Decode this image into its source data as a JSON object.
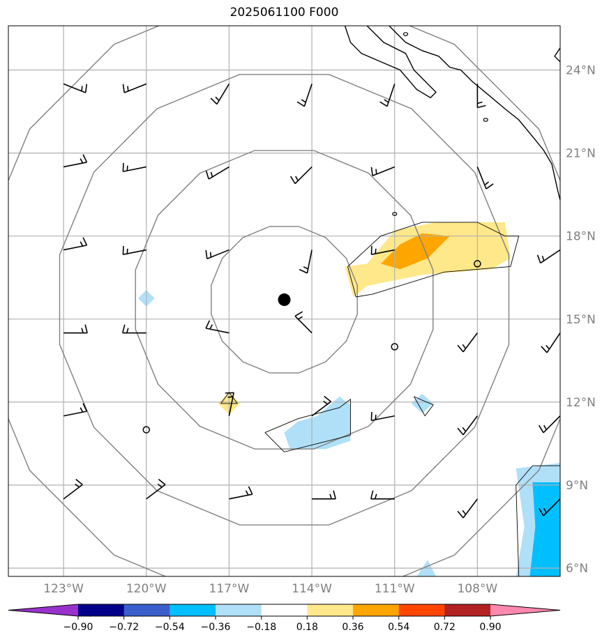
{
  "chart_data": {
    "type": "contour-map",
    "title": "2025061100 F000",
    "projection": "PlateCarree",
    "xlim": [
      -125,
      -105
    ],
    "ylim": [
      5.7,
      25.6
    ],
    "lon_ticks": [
      {
        "value": -123,
        "label": "123°W"
      },
      {
        "value": -120,
        "label": "120°W"
      },
      {
        "value": -117,
        "label": "117°W"
      },
      {
        "value": -114,
        "label": "114°W"
      },
      {
        "value": -111,
        "label": "111°W"
      },
      {
        "value": -108,
        "label": "108°W"
      }
    ],
    "lat_ticks": [
      {
        "value": 6,
        "label": "6°N"
      },
      {
        "value": 9,
        "label": "9°N"
      },
      {
        "value": 12,
        "label": "12°N"
      },
      {
        "value": 15,
        "label": "15°N"
      },
      {
        "value": 18,
        "label": "18°N"
      },
      {
        "value": 21,
        "label": "21°N"
      },
      {
        "value": 24,
        "label": "24°N"
      }
    ],
    "grid": true,
    "storm_center": {
      "lon": -115.0,
      "lat": 15.7
    },
    "range_rings_deg": [
      2.7,
      5.5,
      8.3,
      11.1
    ],
    "colorbar": {
      "levels": [
        "−0.90",
        "−0.72",
        "−0.54",
        "−0.36",
        "−0.18",
        "0.18",
        "0.36",
        "0.54",
        "0.72",
        "0.90"
      ],
      "colors": [
        "#9932cc",
        "#00008b",
        "#3a5fcd",
        "#00bfff",
        "#b0e0f8",
        "#ffffff",
        "#ffe88a",
        "#ffa500",
        "#ff4500",
        "#b22222",
        "#ff88b0"
      ],
      "extend": "both"
    },
    "filled_regions": [
      {
        "level": "0.18–0.36",
        "color": "#ffe88a",
        "points": [
          [
            -112.0,
            17.0
          ],
          [
            -111.0,
            18.2
          ],
          [
            -109.5,
            18.5
          ],
          [
            -107.0,
            18.5
          ],
          [
            -106.8,
            17.2
          ],
          [
            -107.5,
            16.8
          ],
          [
            -110.0,
            16.6
          ],
          [
            -112.0,
            16.2
          ],
          [
            -112.5,
            15.8
          ],
          [
            -112.8,
            16.9
          ]
        ]
      },
      {
        "level": "0.36–0.54",
        "color": "#ffa500",
        "points": [
          [
            -111.5,
            17.0
          ],
          [
            -110.8,
            17.7
          ],
          [
            -110.0,
            18.1
          ],
          [
            -109.0,
            18.0
          ],
          [
            -109.8,
            17.2
          ],
          [
            -110.8,
            16.8
          ]
        ]
      },
      {
        "level": "0.18–0.36",
        "color": "#ffe88a",
        "points": [
          [
            -117.0,
            12.35
          ],
          [
            -116.6,
            11.95
          ],
          [
            -117.0,
            11.55
          ],
          [
            -117.4,
            11.95
          ]
        ]
      },
      {
        "level": "-0.36–-0.18",
        "color": "#b0e0f8",
        "points": [
          [
            -120.0,
            16.05
          ],
          [
            -119.7,
            15.75
          ],
          [
            -120.0,
            15.45
          ],
          [
            -120.3,
            15.75
          ]
        ]
      },
      {
        "level": "-0.36–-0.18",
        "color": "#b0e0f8",
        "points": [
          [
            -115.0,
            10.9
          ],
          [
            -114.5,
            11.3
          ],
          [
            -113.8,
            11.5
          ],
          [
            -113.0,
            12.2
          ],
          [
            -112.6,
            11.9
          ],
          [
            -112.6,
            10.6
          ],
          [
            -113.5,
            10.3
          ],
          [
            -114.8,
            10.3
          ]
        ]
      },
      {
        "level": "-0.36–-0.18",
        "color": "#b0e0f8",
        "points": [
          [
            -110.0,
            12.3
          ],
          [
            -109.6,
            11.95
          ],
          [
            -110.0,
            11.6
          ],
          [
            -110.4,
            11.95
          ]
        ]
      },
      {
        "level": "-0.36–-0.18",
        "color": "#b0e0f8",
        "points": [
          [
            -106.6,
            9.6
          ],
          [
            -105.0,
            9.8
          ],
          [
            -105.0,
            5.7
          ],
          [
            -106.6,
            5.7
          ],
          [
            -106.3,
            7.5
          ]
        ]
      },
      {
        "level": "-0.54–-0.36",
        "color": "#00bfff",
        "points": [
          [
            -106.0,
            9.1
          ],
          [
            -105.0,
            9.1
          ],
          [
            -105.0,
            5.7
          ],
          [
            -106.1,
            5.7
          ],
          [
            -105.9,
            7.5
          ]
        ]
      },
      {
        "level": "-0.36–-0.18",
        "color": "#b0e0f8",
        "points": [
          [
            -109.8,
            6.3
          ],
          [
            -109.5,
            5.7
          ],
          [
            -110.2,
            5.7
          ]
        ]
      }
    ],
    "contour_lines": [
      [
        [
          -112.4,
          15.8
        ],
        [
          -112.7,
          16.9
        ],
        [
          -111.5,
          18.0
        ],
        [
          -110.0,
          18.5
        ],
        [
          -108.0,
          18.5
        ],
        [
          -107.0,
          18.0
        ],
        [
          -106.5,
          18.0
        ],
        [
          -106.8,
          16.9
        ],
        [
          -109.2,
          16.7
        ],
        [
          -111.8,
          15.9
        ],
        [
          -112.4,
          15.8
        ]
      ],
      [
        [
          -115.7,
          10.9
        ],
        [
          -114.5,
          11.4
        ],
        [
          -113.0,
          11.8
        ],
        [
          -112.6,
          12.1
        ],
        [
          -112.6,
          10.8
        ],
        [
          -115.0,
          10.2
        ],
        [
          -115.7,
          10.9
        ]
      ],
      [
        [
          -110.3,
          12.2
        ],
        [
          -109.6,
          11.9
        ],
        [
          -109.9,
          11.5
        ],
        [
          -110.3,
          12.2
        ]
      ],
      [
        [
          -117.3,
          11.95
        ],
        [
          -117.0,
          12.35
        ],
        [
          -116.7,
          11.95
        ],
        [
          -117.3,
          11.95
        ]
      ],
      [
        [
          -106.0,
          9.7
        ],
        [
          -105.0,
          9.7
        ]
      ],
      [
        [
          -106.0,
          9.7
        ],
        [
          -106.6,
          9.0
        ],
        [
          -106.5,
          5.7
        ]
      ]
    ],
    "station_circles": [
      [
        -108.0,
        17.0
      ],
      [
        -111.0,
        14.0
      ],
      [
        -120.0,
        11.0
      ]
    ],
    "wind_barbs": [
      {
        "lon": -123,
        "lat": 23.5,
        "u": -5,
        "v": 2
      },
      {
        "lon": -120,
        "lat": 23.5,
        "u": 5,
        "v": 2
      },
      {
        "lon": -117,
        "lat": 23.5,
        "u": 3,
        "v": 5
      },
      {
        "lon": -114,
        "lat": 23.5,
        "u": 2,
        "v": 6
      },
      {
        "lon": -111,
        "lat": 23.5,
        "u": 2,
        "v": 6
      },
      {
        "lon": -108,
        "lat": 23.5,
        "u": 0,
        "v": 6
      },
      {
        "lon": -105,
        "lat": 23.5,
        "u": -2,
        "v": 4
      },
      {
        "lon": -123,
        "lat": 20.5,
        "u": -5,
        "v": -1
      },
      {
        "lon": -120,
        "lat": 20.5,
        "u": 5,
        "v": 1
      },
      {
        "lon": -117,
        "lat": 20.5,
        "u": 5,
        "v": 3
      },
      {
        "lon": -114,
        "lat": 20.5,
        "u": 4,
        "v": 4
      },
      {
        "lon": -111,
        "lat": 20.5,
        "u": 5,
        "v": 2
      },
      {
        "lon": -108,
        "lat": 20.5,
        "u": -2,
        "v": 5
      },
      {
        "lon": -123,
        "lat": 17.5,
        "u": -5,
        "v": -1
      },
      {
        "lon": -120,
        "lat": 17.5,
        "u": 5,
        "v": 1
      },
      {
        "lon": -117,
        "lat": 17.5,
        "u": 5,
        "v": 2
      },
      {
        "lon": -114,
        "lat": 17.5,
        "u": 1,
        "v": 5
      },
      {
        "lon": -111,
        "lat": 17.5,
        "u": 5,
        "v": 1
      },
      {
        "lon": -105,
        "lat": 17.5,
        "u": 3,
        "v": 2
      },
      {
        "lon": -123,
        "lat": 14.5,
        "u": -5,
        "v": 0
      },
      {
        "lon": -120,
        "lat": 14.5,
        "u": 5,
        "v": 0
      },
      {
        "lon": -117,
        "lat": 14.5,
        "u": 5,
        "v": -1
      },
      {
        "lon": -114,
        "lat": 14.5,
        "u": 3,
        "v": -3
      },
      {
        "lon": -108,
        "lat": 14.5,
        "u": 3,
        "v": 4
      },
      {
        "lon": -105,
        "lat": 14.5,
        "u": 2,
        "v": 3
      },
      {
        "lon": -123,
        "lat": 11.5,
        "u": -5,
        "v": -1
      },
      {
        "lon": -117,
        "lat": 11.5,
        "u": -1,
        "v": -5
      },
      {
        "lon": -114,
        "lat": 11.5,
        "u": -4,
        "v": -3
      },
      {
        "lon": -111,
        "lat": 11.5,
        "u": 5,
        "v": 1
      },
      {
        "lon": -108,
        "lat": 11.5,
        "u": 3,
        "v": 4
      },
      {
        "lon": -105,
        "lat": 11.5,
        "u": 3,
        "v": 3
      },
      {
        "lon": -123,
        "lat": 8.5,
        "u": -4,
        "v": -3
      },
      {
        "lon": -120,
        "lat": 8.5,
        "u": -4,
        "v": -3
      },
      {
        "lon": -117,
        "lat": 8.5,
        "u": -5,
        "v": -1
      },
      {
        "lon": -114,
        "lat": 8.5,
        "u": -5,
        "v": 0
      },
      {
        "lon": -111,
        "lat": 8.5,
        "u": 5,
        "v": 0
      },
      {
        "lon": -108,
        "lat": 8.5,
        "u": 3,
        "v": 4
      },
      {
        "lon": -105,
        "lat": 8.5,
        "u": 3,
        "v": 3
      }
    ],
    "coastlines": [
      [
        [
          -112.8,
          25.6
        ],
        [
          -112.6,
          25.0
        ],
        [
          -112.2,
          24.6
        ],
        [
          -111.5,
          24.3
        ],
        [
          -110.8,
          24.0
        ],
        [
          -110.2,
          23.3
        ],
        [
          -109.7,
          23.0
        ],
        [
          -109.5,
          23.2
        ],
        [
          -109.9,
          23.6
        ],
        [
          -110.3,
          24.0
        ],
        [
          -110.6,
          24.6
        ],
        [
          -111.4,
          25.0
        ],
        [
          -112.0,
          25.6
        ]
      ],
      [
        [
          -111.2,
          25.6
        ],
        [
          -110.6,
          25.0
        ],
        [
          -110.0,
          24.7
        ],
        [
          -109.4,
          24.5
        ],
        [
          -109.0,
          24.1
        ],
        [
          -108.6,
          24.0
        ],
        [
          -108.2,
          23.6
        ],
        [
          -107.6,
          23.1
        ],
        [
          -107.0,
          22.6
        ],
        [
          -106.5,
          22.2
        ],
        [
          -106.0,
          21.6
        ],
        [
          -105.6,
          21.1
        ],
        [
          -105.3,
          20.6
        ],
        [
          -105.1,
          19.7
        ],
        [
          -105.0,
          19.3
        ]
      ],
      [
        [
          -105.0,
          24.8
        ],
        [
          -105.2,
          24.5
        ],
        [
          -105.0,
          24.3
        ]
      ]
    ],
    "islands": [
      [
        -111.0,
        18.8
      ],
      [
        -107.7,
        22.2
      ],
      [
        -110.6,
        25.3
      ]
    ]
  }
}
